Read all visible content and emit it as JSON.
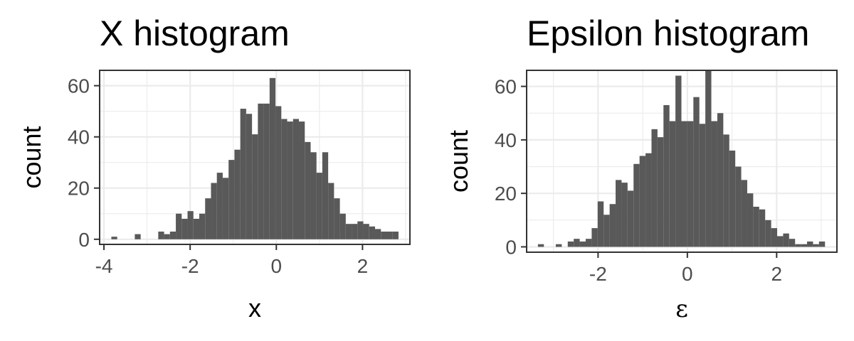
{
  "chart_data": [
    {
      "type": "bar",
      "title": "X histogram",
      "xlabel": "x",
      "ylabel": "count",
      "xlim": [
        -4.1,
        3.1
      ],
      "ylim": [
        -2,
        66
      ],
      "xticks": [
        -4,
        -2,
        0,
        2
      ],
      "xtick_labels": [
        "-4",
        "-2",
        "0",
        "2"
      ],
      "yticks": [
        0,
        20,
        40,
        60
      ],
      "ytick_labels": [
        "0",
        "20",
        "40",
        "60"
      ],
      "grid": true,
      "bin_width": 0.136,
      "x": [
        -3.76,
        -3.216,
        -2.672,
        -2.536,
        -2.4,
        -2.264,
        -2.128,
        -1.992,
        -1.856,
        -1.72,
        -1.584,
        -1.448,
        -1.312,
        -1.176,
        -1.04,
        -0.904,
        -0.768,
        -0.632,
        -0.496,
        -0.36,
        -0.224,
        -0.088,
        0.048,
        0.184,
        0.32,
        0.456,
        0.592,
        0.728,
        0.864,
        0.999,
        1.135,
        1.271,
        1.407,
        1.543,
        1.679,
        1.815,
        1.951,
        2.087,
        2.223,
        2.359,
        2.495,
        2.631,
        2.767
      ],
      "values": [
        1,
        2,
        3,
        2,
        3,
        10,
        8,
        11,
        8,
        10,
        16,
        22,
        26,
        24,
        31,
        35,
        51,
        49,
        41,
        53,
        53,
        63,
        52,
        47,
        46,
        47,
        46,
        38,
        34,
        26,
        34,
        22,
        16,
        10,
        6,
        6,
        7,
        6,
        5,
        4,
        3,
        3,
        3
      ]
    },
    {
      "type": "bar",
      "title": "Epsilon histogram",
      "xlabel": "ε",
      "ylabel": "count",
      "xlim": [
        -3.6,
        3.35
      ],
      "ylim": [
        -2,
        66
      ],
      "xticks": [
        -2,
        0,
        2
      ],
      "xtick_labels": [
        "-2",
        "0",
        "2"
      ],
      "yticks": [
        0,
        20,
        40,
        60
      ],
      "ytick_labels": [
        "0",
        "20",
        "40",
        "60"
      ],
      "grid": true,
      "bin_width": 0.134,
      "x": [
        -3.28,
        -2.88,
        -2.612,
        -2.478,
        -2.344,
        -2.21,
        -2.076,
        -1.942,
        -1.808,
        -1.674,
        -1.54,
        -1.406,
        -1.272,
        -1.138,
        -1.004,
        -0.87,
        -0.736,
        -0.602,
        -0.468,
        -0.334,
        -0.2,
        -0.066,
        0.068,
        0.202,
        0.336,
        0.47,
        0.604,
        0.738,
        0.872,
        1.006,
        1.14,
        1.274,
        1.408,
        1.542,
        1.676,
        1.81,
        1.944,
        2.078,
        2.212,
        2.346,
        2.48,
        2.614,
        2.748,
        2.882,
        3.016
      ],
      "values": [
        1,
        1,
        2,
        3,
        2,
        3,
        7,
        17,
        12,
        16,
        25,
        24,
        21,
        31,
        34,
        35,
        44,
        41,
        53,
        47,
        64,
        47,
        47,
        56,
        46,
        66,
        47,
        50,
        42,
        36,
        30,
        25,
        20,
        15,
        14,
        10,
        7,
        4,
        5,
        3,
        1,
        1,
        2,
        1,
        2
      ]
    }
  ]
}
